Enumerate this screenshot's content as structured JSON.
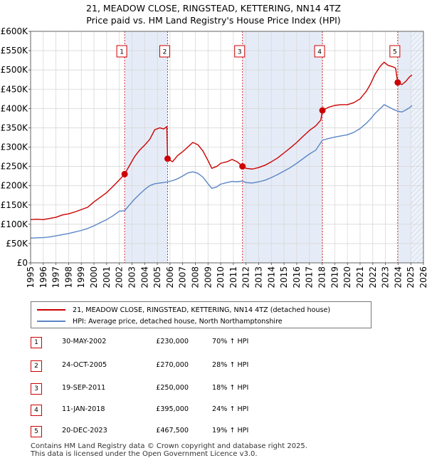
{
  "chart_data": {
    "type": "line",
    "title_line1": "21, MEADOW CLOSE, RINGSTEAD, KETTERING, NN14 4TZ",
    "title_line2": "Price paid vs. HM Land Registry's House Price Index (HPI)",
    "xlabel": "",
    "ylabel": "",
    "xlim": [
      1995,
      2026
    ],
    "ylim": [
      0,
      600000
    ],
    "y_ticks": [
      0,
      50000,
      100000,
      150000,
      200000,
      250000,
      300000,
      350000,
      400000,
      450000,
      500000,
      550000,
      600000
    ],
    "y_tick_labels": [
      "£0",
      "£50K",
      "£100K",
      "£150K",
      "£200K",
      "£250K",
      "£300K",
      "£350K",
      "£400K",
      "£450K",
      "£500K",
      "£550K",
      "£600K"
    ],
    "x_ticks": [
      1995,
      1996,
      1997,
      1998,
      1999,
      2000,
      2001,
      2002,
      2003,
      2004,
      2005,
      2006,
      2007,
      2008,
      2009,
      2010,
      2011,
      2012,
      2013,
      2014,
      2015,
      2016,
      2017,
      2018,
      2019,
      2020,
      2021,
      2022,
      2023,
      2024,
      2025,
      2026
    ],
    "x_tick_labels": [
      "1995",
      "1996",
      "1997",
      "1998",
      "1999",
      "2000",
      "2001",
      "2002",
      "2003",
      "2004",
      "2005",
      "2006",
      "2007",
      "2008",
      "2009",
      "2010",
      "2011",
      "2012",
      "2013",
      "2014",
      "2015",
      "2016",
      "2017",
      "2018",
      "2019",
      "2020",
      "2021",
      "2022",
      "2023",
      "2024",
      "2025",
      "2026"
    ],
    "grid": true,
    "future_hatch_from": 2025.0,
    "series": [
      {
        "name": "21, MEADOW CLOSE, RINGSTEAD, KETTERING, NN14 4TZ (detached house)",
        "color": "#cc0000",
        "points": [
          [
            1995.0,
            112000
          ],
          [
            1995.5,
            113000
          ],
          [
            1996.0,
            112000
          ],
          [
            1996.5,
            115000
          ],
          [
            1997.0,
            118000
          ],
          [
            1997.5,
            124000
          ],
          [
            1998.0,
            127000
          ],
          [
            1998.5,
            132000
          ],
          [
            1999.0,
            138000
          ],
          [
            1999.5,
            144000
          ],
          [
            2000.0,
            158000
          ],
          [
            2000.5,
            170000
          ],
          [
            2001.0,
            182000
          ],
          [
            2001.5,
            198000
          ],
          [
            2002.0,
            215000
          ],
          [
            2002.42,
            230000
          ],
          [
            2002.8,
            252000
          ],
          [
            2003.2,
            275000
          ],
          [
            2003.6,
            292000
          ],
          [
            2004.0,
            305000
          ],
          [
            2004.4,
            320000
          ],
          [
            2004.8,
            345000
          ],
          [
            2005.2,
            350000
          ],
          [
            2005.5,
            347000
          ],
          [
            2005.75,
            353000
          ],
          [
            2005.81,
            270000
          ],
          [
            2006.2,
            262000
          ],
          [
            2006.6,
            278000
          ],
          [
            2007.0,
            288000
          ],
          [
            2007.4,
            300000
          ],
          [
            2007.8,
            312000
          ],
          [
            2008.2,
            306000
          ],
          [
            2008.6,
            290000
          ],
          [
            2009.0,
            265000
          ],
          [
            2009.3,
            245000
          ],
          [
            2009.7,
            250000
          ],
          [
            2010.0,
            258000
          ],
          [
            2010.5,
            262000
          ],
          [
            2010.9,
            268000
          ],
          [
            2011.3,
            262000
          ],
          [
            2011.72,
            250000
          ],
          [
            2012.0,
            245000
          ],
          [
            2012.5,
            243000
          ],
          [
            2013.0,
            247000
          ],
          [
            2013.5,
            253000
          ],
          [
            2014.0,
            262000
          ],
          [
            2014.5,
            272000
          ],
          [
            2015.0,
            285000
          ],
          [
            2015.5,
            298000
          ],
          [
            2016.0,
            312000
          ],
          [
            2016.5,
            328000
          ],
          [
            2017.0,
            343000
          ],
          [
            2017.5,
            355000
          ],
          [
            2017.9,
            370000
          ],
          [
            2018.03,
            395000
          ],
          [
            2018.5,
            403000
          ],
          [
            2019.0,
            408000
          ],
          [
            2019.5,
            410000
          ],
          [
            2020.0,
            410000
          ],
          [
            2020.5,
            415000
          ],
          [
            2021.0,
            425000
          ],
          [
            2021.5,
            445000
          ],
          [
            2021.8,
            462000
          ],
          [
            2022.2,
            490000
          ],
          [
            2022.6,
            510000
          ],
          [
            2022.9,
            520000
          ],
          [
            2023.2,
            512000
          ],
          [
            2023.6,
            508000
          ],
          [
            2023.8,
            505000
          ],
          [
            2023.97,
            467500
          ],
          [
            2024.3,
            462000
          ],
          [
            2024.6,
            470000
          ],
          [
            2024.9,
            482000
          ],
          [
            2025.1,
            487000
          ]
        ]
      },
      {
        "name": "HPI: Average price, detached house, North Northamptonshire",
        "color": "#5b86c5",
        "points": [
          [
            1995.0,
            64000
          ],
          [
            1995.5,
            65000
          ],
          [
            1996.0,
            65500
          ],
          [
            1996.5,
            67000
          ],
          [
            1997.0,
            70000
          ],
          [
            1997.5,
            73000
          ],
          [
            1998.0,
            76000
          ],
          [
            1998.5,
            80000
          ],
          [
            1999.0,
            84000
          ],
          [
            1999.5,
            89000
          ],
          [
            2000.0,
            96000
          ],
          [
            2000.5,
            104000
          ],
          [
            2001.0,
            112000
          ],
          [
            2001.5,
            122000
          ],
          [
            2002.0,
            134000
          ],
          [
            2002.42,
            135000
          ],
          [
            2002.8,
            150000
          ],
          [
            2003.2,
            165000
          ],
          [
            2003.6,
            178000
          ],
          [
            2004.0,
            190000
          ],
          [
            2004.4,
            200000
          ],
          [
            2004.8,
            205000
          ],
          [
            2005.2,
            207000
          ],
          [
            2005.5,
            208000
          ],
          [
            2005.81,
            210000
          ],
          [
            2006.2,
            213000
          ],
          [
            2006.6,
            218000
          ],
          [
            2007.0,
            225000
          ],
          [
            2007.4,
            233000
          ],
          [
            2007.8,
            236000
          ],
          [
            2008.2,
            232000
          ],
          [
            2008.6,
            222000
          ],
          [
            2009.0,
            205000
          ],
          [
            2009.3,
            193000
          ],
          [
            2009.7,
            197000
          ],
          [
            2010.0,
            204000
          ],
          [
            2010.5,
            208000
          ],
          [
            2010.9,
            211000
          ],
          [
            2011.3,
            210000
          ],
          [
            2011.72,
            212000
          ],
          [
            2012.0,
            208000
          ],
          [
            2012.5,
            207000
          ],
          [
            2013.0,
            210000
          ],
          [
            2013.5,
            214000
          ],
          [
            2014.0,
            221000
          ],
          [
            2014.5,
            229000
          ],
          [
            2015.0,
            238000
          ],
          [
            2015.5,
            247000
          ],
          [
            2016.0,
            258000
          ],
          [
            2016.5,
            270000
          ],
          [
            2017.0,
            282000
          ],
          [
            2017.5,
            292000
          ],
          [
            2018.03,
            318000
          ],
          [
            2018.5,
            322000
          ],
          [
            2019.0,
            326000
          ],
          [
            2019.5,
            329000
          ],
          [
            2020.0,
            332000
          ],
          [
            2020.5,
            338000
          ],
          [
            2021.0,
            348000
          ],
          [
            2021.5,
            362000
          ],
          [
            2021.8,
            372000
          ],
          [
            2022.2,
            388000
          ],
          [
            2022.6,
            400000
          ],
          [
            2022.9,
            410000
          ],
          [
            2023.2,
            405000
          ],
          [
            2023.6,
            398000
          ],
          [
            2023.97,
            393000
          ],
          [
            2024.3,
            391000
          ],
          [
            2024.6,
            396000
          ],
          [
            2024.9,
            402000
          ],
          [
            2025.1,
            408000
          ]
        ]
      }
    ],
    "sales": [
      {
        "label": "1",
        "x": 2002.42,
        "value": 230000
      },
      {
        "label": "2",
        "x": 2005.81,
        "value": 270000
      },
      {
        "label": "3",
        "x": 2011.72,
        "value": 250000
      },
      {
        "label": "4",
        "x": 2018.03,
        "value": 395000
      },
      {
        "label": "5",
        "x": 2023.97,
        "value": 467500
      }
    ]
  },
  "legend": {
    "series1_label": "21, MEADOW CLOSE, RINGSTEAD, KETTERING, NN14 4TZ (detached house)",
    "series2_label": "HPI: Average price, detached house, North Northamptonshire",
    "series1_color": "#cc0000",
    "series2_color": "#5b86c5"
  },
  "transactions": [
    {
      "num": "1",
      "date": "30-MAY-2002",
      "price": "£230,000",
      "hpi": "70% ↑ HPI"
    },
    {
      "num": "2",
      "date": "24-OCT-2005",
      "price": "£270,000",
      "hpi": "28% ↑ HPI"
    },
    {
      "num": "3",
      "date": "19-SEP-2011",
      "price": "£250,000",
      "hpi": "18% ↑ HPI"
    },
    {
      "num": "4",
      "date": "11-JAN-2018",
      "price": "£395,000",
      "hpi": "24% ↑ HPI"
    },
    {
      "num": "5",
      "date": "20-DEC-2023",
      "price": "£467,500",
      "hpi": "19% ↑ HPI"
    }
  ],
  "footer": {
    "line1": "Contains HM Land Registry data © Crown copyright and database right 2025.",
    "line2": "This data is licensed under the Open Government Licence v3.0."
  }
}
